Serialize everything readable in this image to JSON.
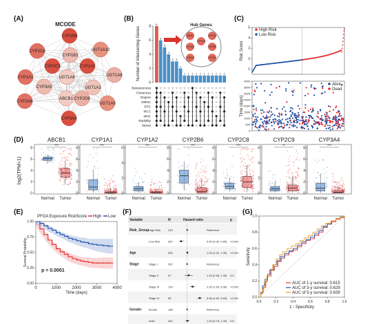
{
  "panels": {
    "a": "(A)",
    "b": "(B)",
    "c": "(C)",
    "d": "(D)",
    "e": "(E)",
    "f": "(F)",
    "g": "(G)"
  },
  "chart_data": [
    {
      "id": "A",
      "type": "network",
      "title": "MCODE",
      "nodes": [
        "CYP2B6",
        "UGT1A10",
        "CYP1B1",
        "CYP2C8",
        "CYP2C9",
        "CYP1A2",
        "UGT1A8",
        "CYP1A1",
        "UGT1A6",
        "CYP3A5",
        "UGT1A1",
        "ABCB1",
        "CYP2D6",
        "CYP2A6",
        "UGT1A9",
        "CYP3A4"
      ],
      "node_colors": {
        "CYP2B6": "#d94f3f",
        "UGT1A10": "#e8907e",
        "CYP1B1": "#eebbb1",
        "CYP2C8": "#e07062",
        "CYP2C9": "#d94f3f",
        "CYP1A2": "#d94f3f",
        "UGT1A8": "#eab0a4",
        "CYP1A1": "#e07062",
        "UGT1A6": "#f2ccc4",
        "CYP3A5": "#eebbb1",
        "UGT1A1": "#f0c3ba",
        "ABCB1": "#f2ccc4",
        "CYP2D6": "#eab0a4",
        "CYP2A6": "#e07062",
        "UGT1A9": "#e8907e",
        "CYP3A4": "#d94f3f"
      }
    },
    {
      "id": "B",
      "type": "upset",
      "ylabel": "Number of Intersecting Genes",
      "inset_title": "Hub Genes",
      "values": [
        8,
        6,
        5,
        4,
        3,
        3,
        2,
        1,
        1,
        1,
        1,
        1,
        1,
        1,
        1,
        1,
        1,
        1
      ],
      "ylim": [
        0,
        8
      ],
      "yticks": [
        0,
        2,
        4,
        6,
        8
      ],
      "sets": [
        "Betweenness",
        "Closeness",
        "Degree",
        "DMNC",
        "EPC",
        "MCC",
        "MNC",
        "Radiality",
        "Stress"
      ],
      "highlight_color": "#e05a4e",
      "bar_color": "#4a90c8"
    },
    {
      "id": "C",
      "type": "scatter",
      "ylabel_top": "Risk Score",
      "ylabel_bottom": "Time (days)",
      "legend_top": [
        {
          "name": "High Risk",
          "color": "#e52b2b"
        },
        {
          "name": "Low Risk",
          "color": "#1f4fa8"
        }
      ],
      "legend_bottom": [
        {
          "name": "Alive",
          "color": "#1f4fa8"
        },
        {
          "name": "Dead",
          "color": "#e52b2b"
        }
      ],
      "yticks_top": [
        1,
        2,
        3,
        4,
        5
      ],
      "yticks_bottom": [
        0,
        500,
        1000,
        1500,
        2000,
        2500,
        3000,
        3500,
        4000
      ],
      "ylim_top": [
        0.5,
        5
      ],
      "ylim_bottom": [
        0,
        4000
      ]
    },
    {
      "id": "D",
      "type": "boxplot",
      "ylabel": "log2(TPM+1)",
      "categories": [
        "Normal",
        "Tumor"
      ],
      "genes": [
        {
          "name": "ABCB1",
          "sig": "***",
          "normal": [
            5.3,
            5.8,
            6.1,
            6.4,
            6.9
          ],
          "tumor": [
            1.5,
            2.8,
            3.6,
            4.4,
            5.8
          ],
          "ylim": [
            0,
            8
          ],
          "ticks": [
            0,
            2,
            4,
            6,
            8
          ]
        },
        {
          "name": "CYP1A1",
          "sig": "***",
          "normal": [
            0.1,
            0.6,
            1.1,
            2.4,
            4.2
          ],
          "tumor": [
            0,
            0.02,
            0.1,
            0.3,
            0.9
          ],
          "ylim": [
            0,
            8
          ],
          "ticks": [
            0,
            2,
            4,
            6,
            8
          ]
        },
        {
          "name": "CYP1A2",
          "sig": "***",
          "normal": [
            0.05,
            0.3,
            0.6,
            0.9,
            1.5
          ],
          "tumor": [
            0,
            0.02,
            0.08,
            0.25,
            0.6
          ],
          "ylim": [
            0,
            6
          ],
          "ticks": [
            0,
            2,
            4,
            6
          ]
        },
        {
          "name": "CYP2B6",
          "sig": "***",
          "normal": [
            0.5,
            1.8,
            3.1,
            4.1,
            5.6
          ],
          "tumor": [
            0,
            0.05,
            0.3,
            1.0,
            2.5
          ],
          "ylim": [
            0,
            8
          ],
          "ticks": [
            0,
            2,
            4,
            6,
            8
          ]
        },
        {
          "name": "CYP2C8",
          "sig": "***",
          "normal": [
            0.3,
            0.8,
            1.2,
            1.8,
            2.8
          ],
          "tumor": [
            0.2,
            1.0,
            2.0,
            3.0,
            5.0
          ],
          "ylim": [
            0,
            8
          ],
          "ticks": [
            0,
            2,
            4,
            6,
            8
          ]
        },
        {
          "name": "CYP2C9",
          "sig": "**",
          "normal": [
            0.1,
            0.3,
            0.6,
            0.9,
            1.6
          ],
          "tumor": [
            0.05,
            0.3,
            0.7,
            1.1,
            2.3
          ],
          "ylim": [
            0,
            6
          ],
          "ticks": [
            0,
            2,
            4,
            6
          ]
        },
        {
          "name": "CYP3A4",
          "sig": "***",
          "normal": [
            0.1,
            0.4,
            0.9,
            1.8,
            3.5
          ],
          "tumor": [
            0,
            0.05,
            0.2,
            0.5,
            1.2
          ],
          "ylim": [
            0,
            8
          ],
          "ticks": [
            0,
            2,
            4,
            6,
            8
          ]
        }
      ]
    },
    {
      "id": "E",
      "type": "line",
      "title": "PFOA Exposure RiskScore",
      "legend": [
        {
          "name": "High",
          "color": "#e52b2b"
        },
        {
          "name": "Low",
          "color": "#1f4fa8"
        }
      ],
      "xlabel": "Time (days)",
      "ylabel": "Survival Probability",
      "annotation": "p < 0.0001",
      "xlim": [
        0,
        4000
      ],
      "ylim": [
        0,
        1
      ],
      "xticks": [
        0,
        1000,
        2000,
        3000,
        4000
      ],
      "yticks": [
        0,
        0.25,
        0.5,
        0.75,
        1.0
      ],
      "series": [
        {
          "name": "High",
          "color": "#e52b2b",
          "x": [
            0,
            200,
            400,
            600,
            800,
            1000,
            1200,
            1400,
            1600,
            1800,
            2000,
            2200,
            2400,
            2600,
            2800,
            3000,
            3300,
            3600,
            3800
          ],
          "y": [
            1,
            0.88,
            0.79,
            0.7,
            0.63,
            0.56,
            0.51,
            0.47,
            0.43,
            0.4,
            0.38,
            0.36,
            0.35,
            0.34,
            0.33,
            0.33,
            0.33,
            0.33,
            0.33
          ],
          "band": [
            0.06,
            0.06,
            0.06,
            0.06,
            0.06,
            0.06,
            0.06,
            0.06,
            0.07,
            0.07,
            0.07,
            0.07,
            0.07,
            0.08,
            0.08,
            0.08,
            0.09,
            0.09,
            0.09
          ]
        },
        {
          "name": "Low",
          "color": "#1f4fa8",
          "x": [
            0,
            200,
            400,
            600,
            800,
            1000,
            1200,
            1400,
            1600,
            1800,
            2000,
            2200,
            2400,
            2600,
            2800,
            3000,
            3300,
            3600,
            3800
          ],
          "y": [
            1,
            0.97,
            0.93,
            0.89,
            0.86,
            0.82,
            0.79,
            0.76,
            0.73,
            0.71,
            0.69,
            0.67,
            0.66,
            0.64,
            0.63,
            0.62,
            0.61,
            0.6,
            0.6
          ],
          "band": [
            0.04,
            0.04,
            0.04,
            0.05,
            0.05,
            0.05,
            0.05,
            0.05,
            0.06,
            0.06,
            0.07,
            0.07,
            0.08,
            0.08,
            0.09,
            0.1,
            0.11,
            0.12,
            0.12
          ]
        }
      ]
    },
    {
      "id": "F",
      "type": "table",
      "headers": [
        "Variable",
        "N",
        "Hazard ratio",
        "",
        "p"
      ],
      "rows": [
        {
          "var": "Risk_Group",
          "level": "High Risk",
          "n": "243",
          "text": "Reference",
          "p": "",
          "hr": null
        },
        {
          "var": "",
          "level": "Low Risk",
          "n": "287",
          "text": "0.40 (0.30, 0.65)",
          "p": "<0.001",
          "hr": 0.4,
          "lo": 0.3,
          "hi": 0.65
        },
        {
          "var": "Age",
          "level": "",
          "n": "530",
          "text": "1.03 (1.02, 1.05)",
          "p": "<0.001",
          "hr": 1.03,
          "lo": 1.02,
          "hi": 1.05
        },
        {
          "var": "Stage",
          "level": "Stage I",
          "n": "267",
          "text": "Reference",
          "p": "",
          "hr": null
        },
        {
          "var": "",
          "level": "Stage II",
          "n": "57",
          "text": "1.26 (0.68, 2.35)",
          "p": "0.5",
          "hr": 1.26,
          "lo": 0.68,
          "hi": 2.35
        },
        {
          "var": "",
          "level": "Stage III",
          "n": "123",
          "text": "2.25 (1.50, 3.39)",
          "p": "<0.001",
          "hr": 2.25,
          "lo": 1.5,
          "hi": 3.39
        },
        {
          "var": "",
          "level": "Stage IV",
          "n": "83",
          "text": "6.58 (4.50, 9.63)",
          "p": "<0.001",
          "hr": 6.58,
          "lo": 4.5,
          "hi": 9.63
        },
        {
          "var": "Gender",
          "level": "female",
          "n": "188",
          "text": "Reference",
          "p": "",
          "hr": null
        },
        {
          "var": "",
          "level": "male",
          "n": "342",
          "text": "1.04 (0.76, 1.43)",
          "p": "0.8",
          "hr": 1.04,
          "lo": 0.76,
          "hi": 1.43
        }
      ],
      "xticks": [
        "0.5",
        "1",
        "2",
        "5"
      ]
    },
    {
      "id": "G",
      "type": "line",
      "xlabel": "1 - Specificity",
      "ylabel": "Sensitivity",
      "xlim": [
        0,
        1
      ],
      "ylim": [
        0,
        1
      ],
      "ticks": [
        "0.0",
        "0.2",
        "0.4",
        "0.6",
        "0.8",
        "1.0"
      ],
      "series": [
        {
          "name": "AUC of 1-y survival: 0.615",
          "color": "#e52b2b",
          "x": [
            0,
            0.02,
            0.05,
            0.08,
            0.1,
            0.14,
            0.18,
            0.22,
            0.26,
            0.3,
            0.35,
            0.4,
            0.45,
            0.5,
            0.55,
            0.6,
            0.65,
            0.7,
            0.75,
            0.8,
            0.85,
            0.9,
            0.95,
            1
          ],
          "y": [
            0,
            0.06,
            0.12,
            0.2,
            0.26,
            0.33,
            0.38,
            0.44,
            0.48,
            0.52,
            0.56,
            0.58,
            0.62,
            0.66,
            0.7,
            0.72,
            0.76,
            0.8,
            0.86,
            0.9,
            0.93,
            0.96,
            0.98,
            1
          ]
        },
        {
          "name": "AUC of 3-y survival: 0.629",
          "color": "#1f4fa8",
          "x": [
            0,
            0.02,
            0.04,
            0.07,
            0.1,
            0.13,
            0.17,
            0.21,
            0.25,
            0.3,
            0.35,
            0.4,
            0.45,
            0.5,
            0.55,
            0.6,
            0.65,
            0.7,
            0.75,
            0.8,
            0.85,
            0.9,
            0.95,
            1
          ],
          "y": [
            0,
            0.05,
            0.14,
            0.22,
            0.28,
            0.34,
            0.4,
            0.45,
            0.5,
            0.54,
            0.57,
            0.6,
            0.64,
            0.68,
            0.71,
            0.74,
            0.78,
            0.82,
            0.87,
            0.9,
            0.94,
            0.97,
            0.99,
            1
          ]
        },
        {
          "name": "AUC of 5-y survival: 0.639",
          "color": "#e8a020",
          "x": [
            0,
            0.02,
            0.04,
            0.06,
            0.09,
            0.12,
            0.16,
            0.2,
            0.24,
            0.28,
            0.33,
            0.38,
            0.43,
            0.48,
            0.53,
            0.58,
            0.63,
            0.68,
            0.73,
            0.78,
            0.84,
            0.9,
            0.95,
            1
          ],
          "y": [
            0,
            0.04,
            0.1,
            0.18,
            0.26,
            0.33,
            0.4,
            0.47,
            0.52,
            0.56,
            0.6,
            0.63,
            0.66,
            0.7,
            0.73,
            0.76,
            0.8,
            0.84,
            0.88,
            0.91,
            0.94,
            0.97,
            0.99,
            1
          ]
        }
      ]
    }
  ]
}
